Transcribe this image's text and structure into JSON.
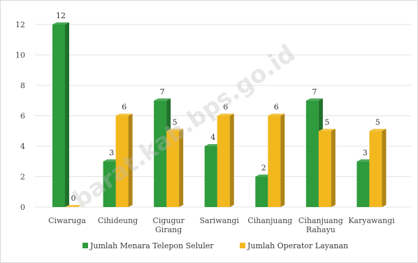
{
  "chart_data": {
    "type": "bar",
    "categories": [
      [
        "Ciwaruga"
      ],
      [
        "Cihideung"
      ],
      [
        "Cigugur",
        "Girang"
      ],
      [
        "Sariwangi"
      ],
      [
        "Cihanjuang"
      ],
      [
        "Cihanjuang",
        "Rahayu"
      ],
      [
        "Karyawangi"
      ]
    ],
    "series": [
      {
        "name": "Jumlah Menara Telepon Seluler",
        "values": [
          12,
          3,
          7,
          4,
          2,
          7,
          3
        ],
        "color": "#2e9b3c"
      },
      {
        "name": "Jumlah Operator Layanan",
        "values": [
          0,
          6,
          5,
          6,
          6,
          5,
          5
        ],
        "color": "#f2b81e"
      }
    ],
    "ylim": [
      0,
      12
    ],
    "yticks": [
      0,
      2,
      4,
      6,
      8,
      10,
      12
    ],
    "grid": true,
    "legend_position": "bottom"
  },
  "watermark": "barat.kab.bps.go.id"
}
